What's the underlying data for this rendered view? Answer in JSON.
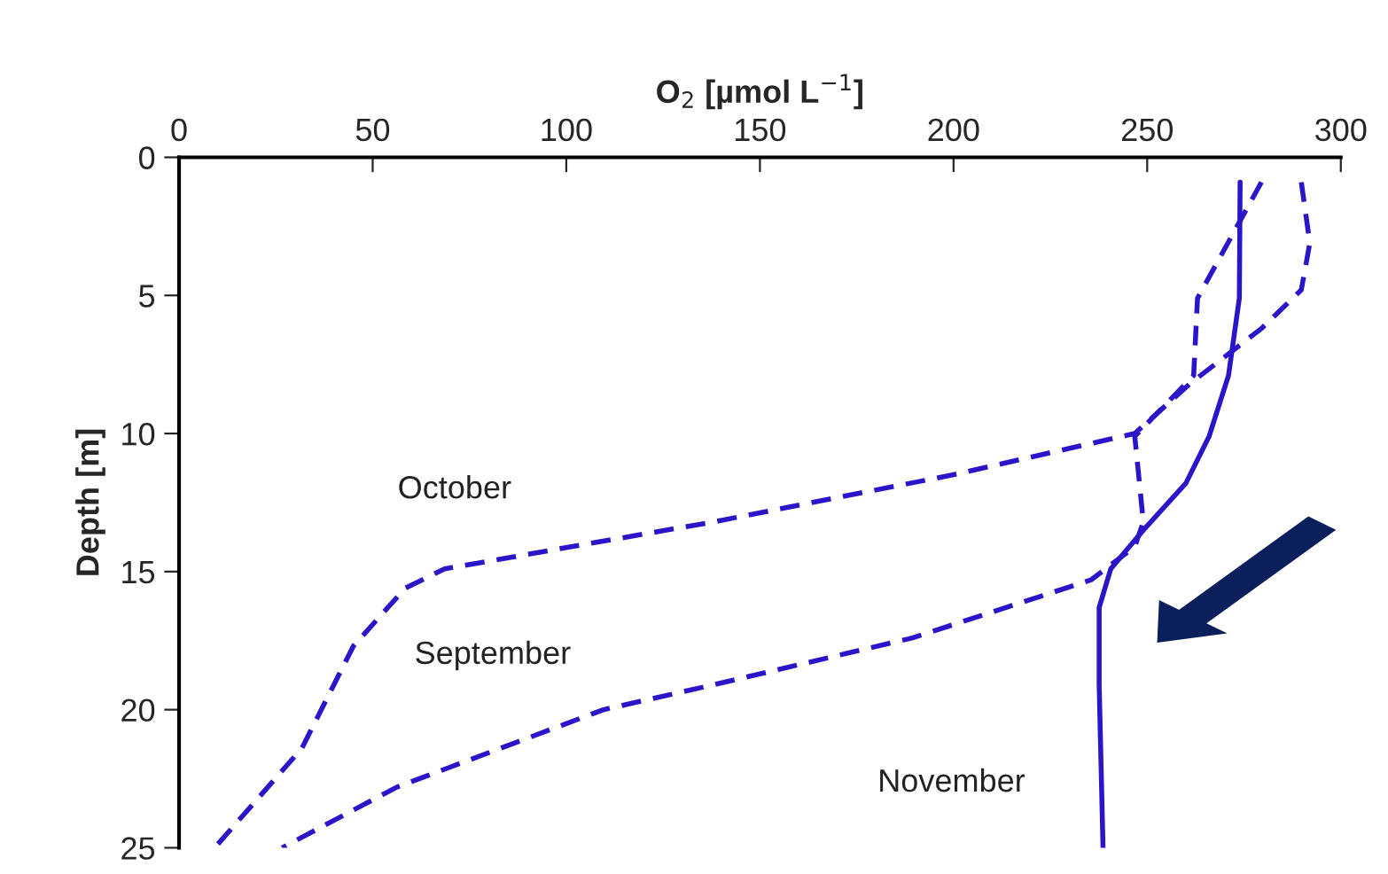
{
  "chart_data": {
    "type": "line",
    "xlabel": "O$_{2}$ [µmol L$^{−1}$]",
    "ylabel": "Depth [m]",
    "xlim": [
      0,
      300
    ],
    "xticks": [
      0,
      50,
      100,
      150,
      200,
      250,
      300
    ],
    "ylim": [
      25,
      0
    ],
    "yticks": [
      0,
      5,
      10,
      15,
      20,
      25
    ],
    "grid": false,
    "marker": "none",
    "series": [
      {
        "name": "November",
        "color": "#2a16c8",
        "line_style": "solid",
        "x": [
          274,
          273.8,
          271,
          266,
          260,
          249,
          240.6,
          237.6,
          237.6,
          238.6
        ],
        "values": [
          0.9,
          5.1,
          7.9,
          10.1,
          11.8,
          13.5,
          14.9,
          16.3,
          19.1,
          25
        ]
      },
      {
        "name": "October",
        "color": "#2a16c8",
        "line_style": "dashed",
        "x": [
          289.8,
          292,
          289.8,
          279.5,
          261,
          246.8,
          199.7,
          138,
          68.6,
          58.4,
          45,
          31.7,
          9.2
        ],
        "values": [
          0.9,
          3.1,
          4.8,
          6.2,
          8.2,
          10,
          11.5,
          13.2,
          14.9,
          15.6,
          17.7,
          21.4,
          25
        ]
      },
      {
        "name": "September",
        "color": "#2a16c8",
        "line_style": "dashed",
        "x": [
          279.5,
          263,
          262,
          246.8,
          249,
          246.8,
          235.5,
          189.4,
          138,
          109.6,
          56.3,
          26.6
        ],
        "values": [
          0.9,
          5.1,
          7.9,
          10.1,
          13.2,
          14.1,
          15.3,
          17.4,
          19.1,
          20,
          22.8,
          25
        ]
      }
    ]
  }
}
